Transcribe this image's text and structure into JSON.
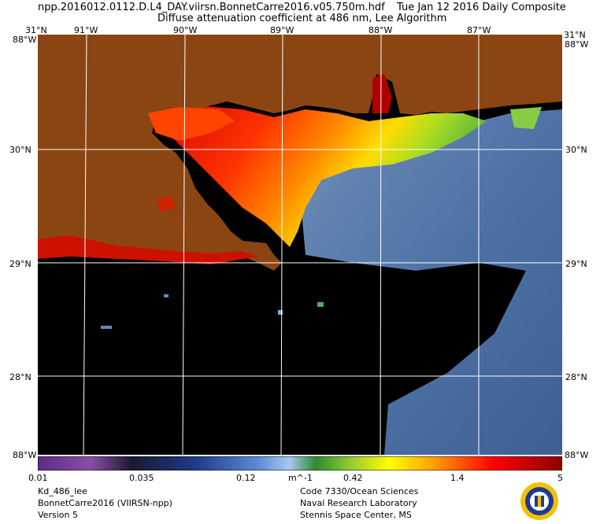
{
  "header": {
    "file_name": "npp.2016012.0112.D.L4_DAY.viirsn.BonnetCarre2016.v05.750m.hdf",
    "date_label": "Tue Jan 12 2016 Daily Composite",
    "product_title": "Diffuse attenuation coefficient at 486 nm, Lee Algorithm"
  },
  "map": {
    "top_lon_labels": [
      "31°N",
      "91°W",
      "90°W",
      "89°W",
      "88°W",
      "87°W",
      "31°N"
    ],
    "left_lat_labels": [
      "30°N",
      "29°N",
      "28°N"
    ],
    "right_lat_labels": [
      "30°N",
      "29°N",
      "28°N"
    ],
    "corner_labels": {
      "top_left": "88°W",
      "top_right": "88°W",
      "bottom_left": "88°W",
      "bottom_right": "88°W"
    },
    "land_color": "#8b4513",
    "nodata_color": "#000000",
    "water_color": "#4a6fa5"
  },
  "colorbar": {
    "ticks": [
      "0.01",
      "0.035",
      "0.12",
      "0.42",
      "1.4",
      "5"
    ],
    "unit": "m^-1",
    "colors": [
      "#4b0082",
      "#1a1a2e",
      "#1e3a8a",
      "#5b8bd6",
      "#a8c8f0",
      "#2e8b2e",
      "#9acd32",
      "#ffff00",
      "#ffa500",
      "#ff0000",
      "#8b0000"
    ]
  },
  "footer": {
    "left": [
      "Kd_486_lee",
      "BonnetCarre2016 (VIIRSN-npp)",
      "Version 5"
    ],
    "right": [
      "Code 7330/Ocean Sciences",
      "Naval Research Laboratory",
      "Stennis Space Center, MS"
    ]
  }
}
